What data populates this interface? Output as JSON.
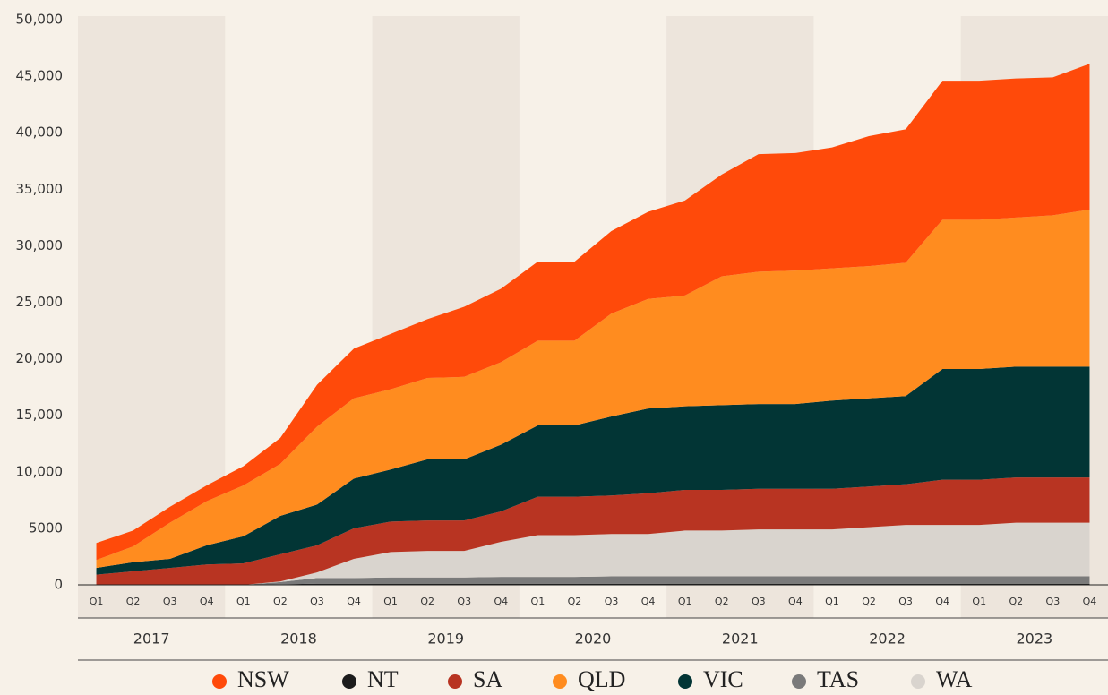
{
  "chart_data": {
    "type": "stacked_area",
    "categories": [
      "Q1",
      "Q2",
      "Q3",
      "Q4",
      "Q1",
      "Q2",
      "Q3",
      "Q4",
      "Q1",
      "Q2",
      "Q3",
      "Q4",
      "Q1",
      "Q2",
      "Q3",
      "Q4",
      "Q1",
      "Q2",
      "Q3",
      "Q4",
      "Q1",
      "Q2",
      "Q3",
      "Q4",
      "Q1",
      "Q2",
      "Q3",
      "Q4"
    ],
    "years": [
      "2017",
      "2018",
      "2019",
      "2020",
      "2021",
      "2022",
      "2023"
    ],
    "ylim": [
      0,
      50000
    ],
    "yticks": [
      0,
      5000,
      {
        "value": 10000,
        "label": "10,000"
      },
      {
        "value": 15000,
        "label": "15,000"
      },
      {
        "value": 20000,
        "label": "20,000"
      },
      {
        "value": 25000,
        "label": "25,000"
      },
      {
        "value": 30000,
        "label": "30,000"
      },
      {
        "value": 35000,
        "label": "35,000"
      },
      {
        "value": 40000,
        "label": "40,000"
      },
      {
        "value": 45000,
        "label": "45,000"
      },
      {
        "value": 50000,
        "label": "50,000"
      }
    ],
    "stack_order": [
      1,
      5,
      6,
      2,
      4,
      3,
      0
    ],
    "series": [
      {
        "name": "NSW",
        "color": "#ff4a0a",
        "values": [
          1500,
          1400,
          1400,
          1400,
          1700,
          2300,
          3700,
          4400,
          4900,
          5200,
          6200,
          6500,
          7000,
          7000,
          7300,
          7700,
          8400,
          9000,
          10400,
          10400,
          10700,
          11500,
          11800,
          12300,
          12300,
          12300,
          12200,
          12900
        ]
      },
      {
        "name": "NT",
        "color": "#1c1c1c",
        "values": [
          0,
          0,
          0,
          0,
          0,
          50,
          100,
          100,
          100,
          100,
          100,
          100,
          100,
          100,
          100,
          100,
          100,
          100,
          100,
          100,
          100,
          100,
          100,
          100,
          100,
          100,
          100,
          100
        ]
      },
      {
        "name": "SA",
        "color": "#b83422",
        "values": [
          900,
          1200,
          1500,
          1800,
          1900,
          2400,
          2400,
          2700,
          2700,
          2700,
          2700,
          2700,
          3400,
          3400,
          3400,
          3600,
          3600,
          3600,
          3600,
          3600,
          3600,
          3600,
          3600,
          4000,
          4000,
          4000,
          4000,
          4000
        ]
      },
      {
        "name": "QLD",
        "color": "#ff8c1f",
        "values": [
          700,
          1400,
          3200,
          3900,
          4500,
          4600,
          6900,
          7100,
          7100,
          7200,
          7300,
          7300,
          7500,
          7500,
          9100,
          9700,
          9800,
          11400,
          11700,
          11800,
          11700,
          11700,
          11800,
          13200,
          13200,
          13200,
          13400,
          13900
        ]
      },
      {
        "name": "VIC",
        "color": "#023535",
        "values": [
          600,
          800,
          800,
          1700,
          2400,
          3400,
          3600,
          4400,
          4600,
          5400,
          5400,
          5900,
          6300,
          6300,
          7000,
          7500,
          7400,
          7500,
          7500,
          7500,
          7800,
          7800,
          7800,
          9800,
          9800,
          9800,
          9800,
          9800
        ]
      },
      {
        "name": "TAS",
        "color": "#7a7a7a",
        "values": [
          0,
          0,
          0,
          0,
          0,
          200,
          500,
          500,
          550,
          550,
          550,
          600,
          600,
          600,
          650,
          650,
          650,
          650,
          650,
          650,
          650,
          650,
          650,
          650,
          650,
          650,
          650,
          650
        ]
      },
      {
        "name": "WA",
        "color": "#d9d4ce",
        "values": [
          0,
          0,
          0,
          0,
          0,
          50,
          500,
          1700,
          2250,
          2350,
          2350,
          3100,
          3700,
          3700,
          3750,
          3750,
          4050,
          4050,
          4150,
          4150,
          4150,
          4350,
          4550,
          4550,
          4550,
          4750,
          4750,
          4750
        ]
      }
    ]
  }
}
